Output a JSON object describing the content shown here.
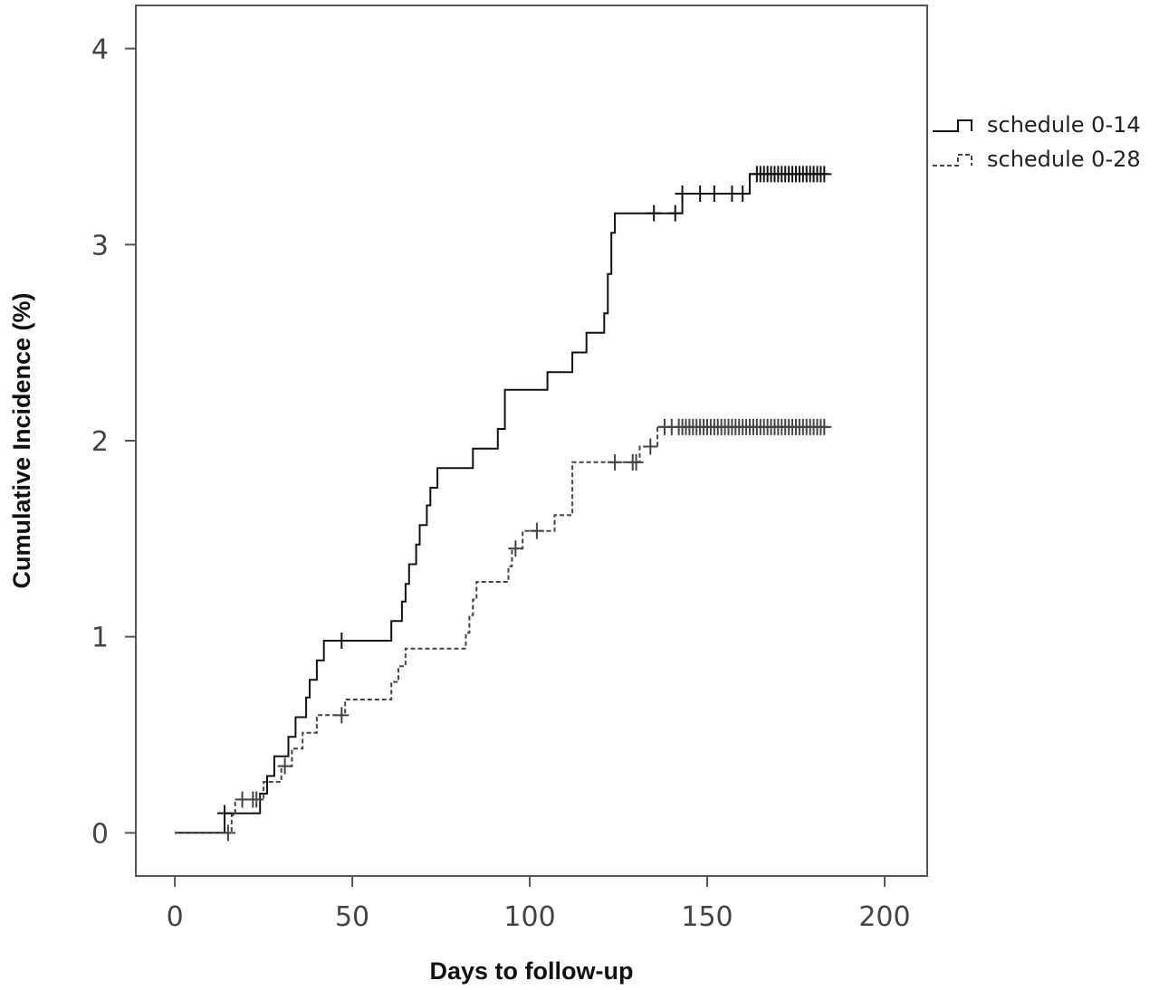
{
  "chart_data": {
    "type": "line",
    "xlabel": "Days to follow-up",
    "ylabel": "Cumulative Incidence (%)",
    "xlim": [
      -11,
      212
    ],
    "ylim": [
      -0.22,
      4.22
    ],
    "xticks": [
      0,
      50,
      100,
      150,
      200
    ],
    "yticks": [
      0,
      1,
      2,
      3,
      4
    ],
    "grid": false,
    "legend_position": "outside-right-top",
    "series": [
      {
        "name": "schedule 0-14",
        "style": "solid",
        "color": "#111111",
        "points": [
          [
            0,
            0
          ],
          [
            14,
            0
          ],
          [
            14,
            0.1
          ],
          [
            24,
            0.1
          ],
          [
            24,
            0.2
          ],
          [
            26,
            0.2
          ],
          [
            26,
            0.29
          ],
          [
            28,
            0.29
          ],
          [
            28,
            0.39
          ],
          [
            32,
            0.39
          ],
          [
            32,
            0.49
          ],
          [
            34,
            0.49
          ],
          [
            34,
            0.59
          ],
          [
            37,
            0.59
          ],
          [
            37,
            0.69
          ],
          [
            38,
            0.69
          ],
          [
            38,
            0.78
          ],
          [
            40,
            0.78
          ],
          [
            40,
            0.88
          ],
          [
            42,
            0.88
          ],
          [
            42,
            0.98
          ],
          [
            61,
            0.98
          ],
          [
            61,
            1.08
          ],
          [
            64,
            1.08
          ],
          [
            64,
            1.18
          ],
          [
            65,
            1.18
          ],
          [
            65,
            1.27
          ],
          [
            66,
            1.27
          ],
          [
            66,
            1.37
          ],
          [
            68,
            1.37
          ],
          [
            68,
            1.47
          ],
          [
            69,
            1.47
          ],
          [
            69,
            1.57
          ],
          [
            71,
            1.57
          ],
          [
            71,
            1.67
          ],
          [
            72,
            1.67
          ],
          [
            72,
            1.76
          ],
          [
            74,
            1.76
          ],
          [
            74,
            1.86
          ],
          [
            84,
            1.86
          ],
          [
            84,
            1.96
          ],
          [
            91,
            1.96
          ],
          [
            91,
            2.06
          ],
          [
            93,
            2.06
          ],
          [
            93,
            2.26
          ],
          [
            105,
            2.26
          ],
          [
            105,
            2.35
          ],
          [
            112,
            2.35
          ],
          [
            112,
            2.45
          ],
          [
            116,
            2.45
          ],
          [
            116,
            2.55
          ],
          [
            121,
            2.55
          ],
          [
            121,
            2.65
          ],
          [
            122,
            2.65
          ],
          [
            122,
            2.85
          ],
          [
            123,
            2.85
          ],
          [
            123,
            3.06
          ],
          [
            124,
            3.06
          ],
          [
            124,
            3.16
          ],
          [
            143,
            3.16
          ],
          [
            143,
            3.26
          ],
          [
            162,
            3.26
          ],
          [
            162,
            3.36
          ],
          [
            184,
            3.36
          ]
        ],
        "censor_x": [
          14,
          47,
          135,
          141,
          143,
          148,
          152,
          157,
          160,
          164,
          165,
          166,
          167,
          168,
          169,
          170,
          171,
          172,
          173,
          174,
          175,
          176,
          177,
          178,
          179,
          180,
          181,
          182,
          183
        ]
      },
      {
        "name": "schedule 0-28",
        "style": "dashed",
        "color": "#444444",
        "points": [
          [
            0,
            0
          ],
          [
            16,
            0
          ],
          [
            16,
            0.09
          ],
          [
            17,
            0.09
          ],
          [
            17,
            0.17
          ],
          [
            25,
            0.17
          ],
          [
            25,
            0.26
          ],
          [
            30,
            0.26
          ],
          [
            30,
            0.34
          ],
          [
            33,
            0.34
          ],
          [
            33,
            0.43
          ],
          [
            36,
            0.43
          ],
          [
            36,
            0.51
          ],
          [
            40,
            0.51
          ],
          [
            40,
            0.6
          ],
          [
            48,
            0.6
          ],
          [
            48,
            0.68
          ],
          [
            61,
            0.68
          ],
          [
            61,
            0.77
          ],
          [
            63,
            0.77
          ],
          [
            63,
            0.85
          ],
          [
            65,
            0.85
          ],
          [
            65,
            0.94
          ],
          [
            82,
            0.94
          ],
          [
            82,
            1.02
          ],
          [
            83,
            1.02
          ],
          [
            83,
            1.11
          ],
          [
            84,
            1.11
          ],
          [
            84,
            1.19
          ],
          [
            85,
            1.19
          ],
          [
            85,
            1.28
          ],
          [
            94,
            1.28
          ],
          [
            94,
            1.36
          ],
          [
            95,
            1.36
          ],
          [
            95,
            1.45
          ],
          [
            98,
            1.45
          ],
          [
            98,
            1.54
          ],
          [
            107,
            1.54
          ],
          [
            107,
            1.62
          ],
          [
            112,
            1.62
          ],
          [
            112,
            1.89
          ],
          [
            131,
            1.89
          ],
          [
            131,
            1.97
          ],
          [
            136,
            1.97
          ],
          [
            136,
            2.07
          ],
          [
            184,
            2.07
          ]
        ],
        "censor_x": [
          15,
          19,
          22,
          23,
          31,
          47,
          96,
          102,
          124,
          129,
          130,
          134,
          138,
          140,
          142,
          143,
          144,
          145,
          146,
          147,
          148,
          149,
          150,
          151,
          152,
          153,
          154,
          155,
          156,
          157,
          158,
          159,
          160,
          161,
          162,
          163,
          164,
          165,
          166,
          167,
          168,
          169,
          170,
          171,
          172,
          173,
          174,
          175,
          176,
          177,
          178,
          179,
          180,
          181,
          182,
          183
        ]
      }
    ]
  }
}
